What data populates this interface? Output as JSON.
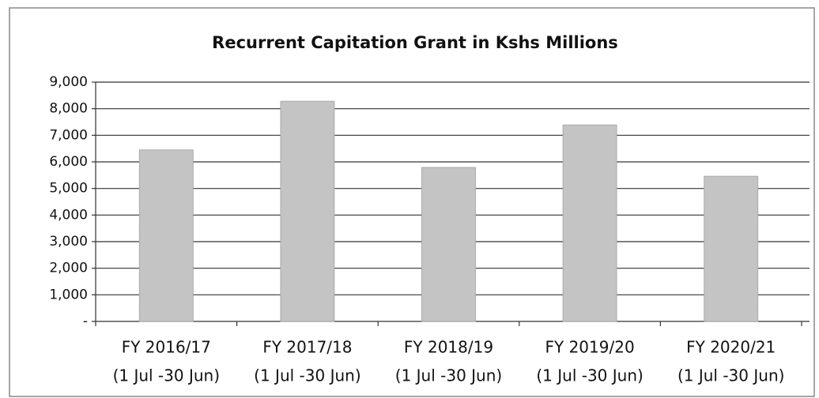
{
  "chart_data": {
    "type": "bar",
    "title": "Recurrent Capitation Grant in Kshs Millions",
    "categories": [
      [
        "FY 2016/17",
        "(1 Jul -30 Jun)"
      ],
      [
        "FY 2017/18",
        "(1 Jul -30 Jun)"
      ],
      [
        "FY 2018/19",
        "(1 Jul -30 Jun)"
      ],
      [
        "FY 2019/20",
        "(1 Jul -30 Jun)"
      ],
      [
        "FY 2020/21",
        "(1 Jul -30 Jun)"
      ]
    ],
    "values": [
      6450,
      8280,
      5790,
      7390,
      5460
    ],
    "color": "#c4c4c4",
    "ylim": [
      0,
      9000
    ],
    "yticks": [
      {
        "value": 0,
        "label": "-"
      },
      {
        "value": 1000,
        "label": "1,000"
      },
      {
        "value": 2000,
        "label": "2,000"
      },
      {
        "value": 3000,
        "label": "3,000"
      },
      {
        "value": 4000,
        "label": "4,000"
      },
      {
        "value": 5000,
        "label": "5,000"
      },
      {
        "value": 6000,
        "label": "6,000"
      },
      {
        "value": 7000,
        "label": "7,000"
      },
      {
        "value": 8000,
        "label": "8,000"
      },
      {
        "value": 9000,
        "label": "9,000"
      }
    ],
    "grid": true
  }
}
